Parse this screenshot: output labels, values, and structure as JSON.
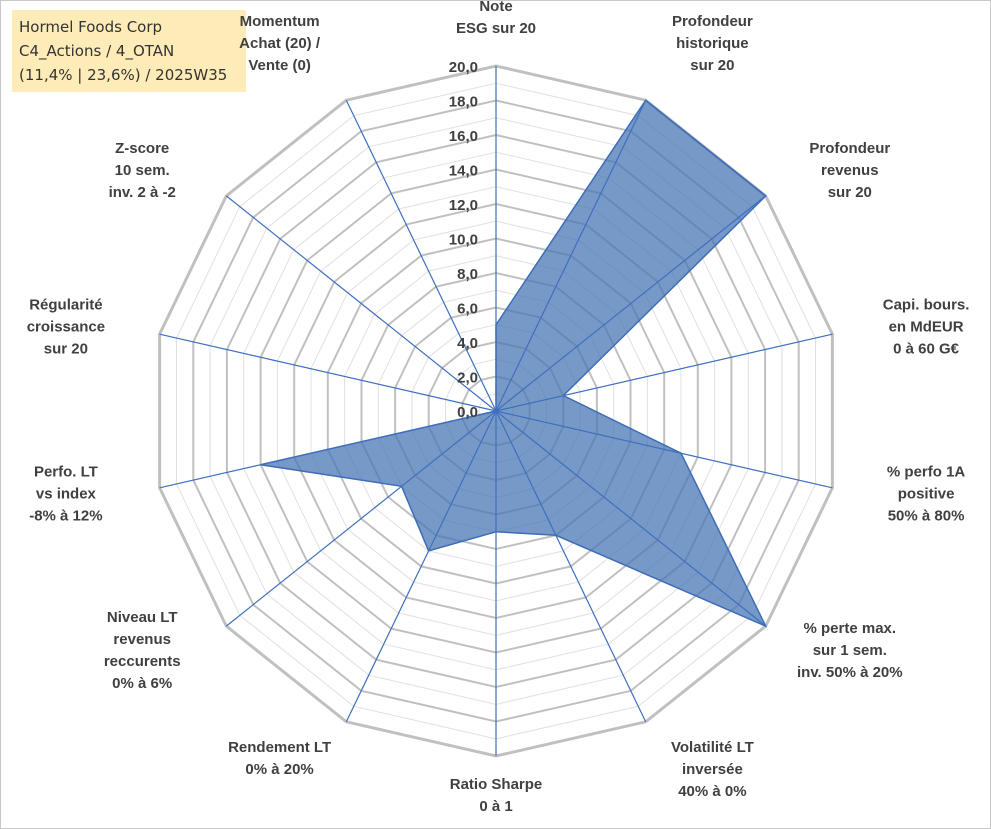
{
  "header": {
    "line1": "Hormel Foods Corp",
    "line2": "C4_Actions / 4_OTAN",
    "line3": "(11,4% | 23,6%) / 2025W35"
  },
  "chart_data": {
    "type": "radar",
    "title": "",
    "axes": [
      [
        "Note",
        "ESG sur 20"
      ],
      [
        "Profondeur",
        "historique",
        "sur 20"
      ],
      [
        "Profondeur",
        "revenus",
        "sur 20"
      ],
      [
        "Capi. bours.",
        "en MdEUR",
        "0 à 60 G€"
      ],
      [
        "% perfo 1A",
        "positive",
        "50% à 80%"
      ],
      [
        "% perte max.",
        "sur 1 sem.",
        "inv. 50% à 20%"
      ],
      [
        "Volatilité LT",
        "inversée",
        "40% à 0%"
      ],
      [
        "Ratio Sharpe",
        "0 à 1"
      ],
      [
        "Rendement LT",
        "0% à 20%"
      ],
      [
        "Niveau LT",
        "revenus",
        "reccurents",
        "0% à 6%"
      ],
      [
        "Perfo. LT",
        "vs index",
        "-8% à 12%"
      ],
      [
        "Régularité",
        "croissance",
        "sur 20"
      ],
      [
        "Z-score",
        "10 sem.",
        "inv. 2 à -2"
      ],
      [
        "Momentum",
        "Achat (20) /",
        "Vente (0)"
      ]
    ],
    "values": [
      5,
      20,
      20,
      4,
      11,
      20,
      8,
      7,
      9,
      7,
      14,
      0,
      0,
      0
    ],
    "rlim": [
      0,
      20
    ],
    "ticks": [
      0,
      2,
      4,
      6,
      8,
      10,
      12,
      14,
      16,
      18,
      20
    ],
    "tick_labels": [
      "0,0",
      "2,0",
      "4,0",
      "6,0",
      "8,0",
      "10,0",
      "12,0",
      "14,0",
      "16,0",
      "18,0",
      "20,0"
    ],
    "grid": true,
    "colors": {
      "fill": "#4a77b4",
      "line": "#3d6db8",
      "ring_major": "#c0c0c0",
      "ring_minor": "#e0e0e0",
      "spoke": "#3f6fbf"
    }
  }
}
